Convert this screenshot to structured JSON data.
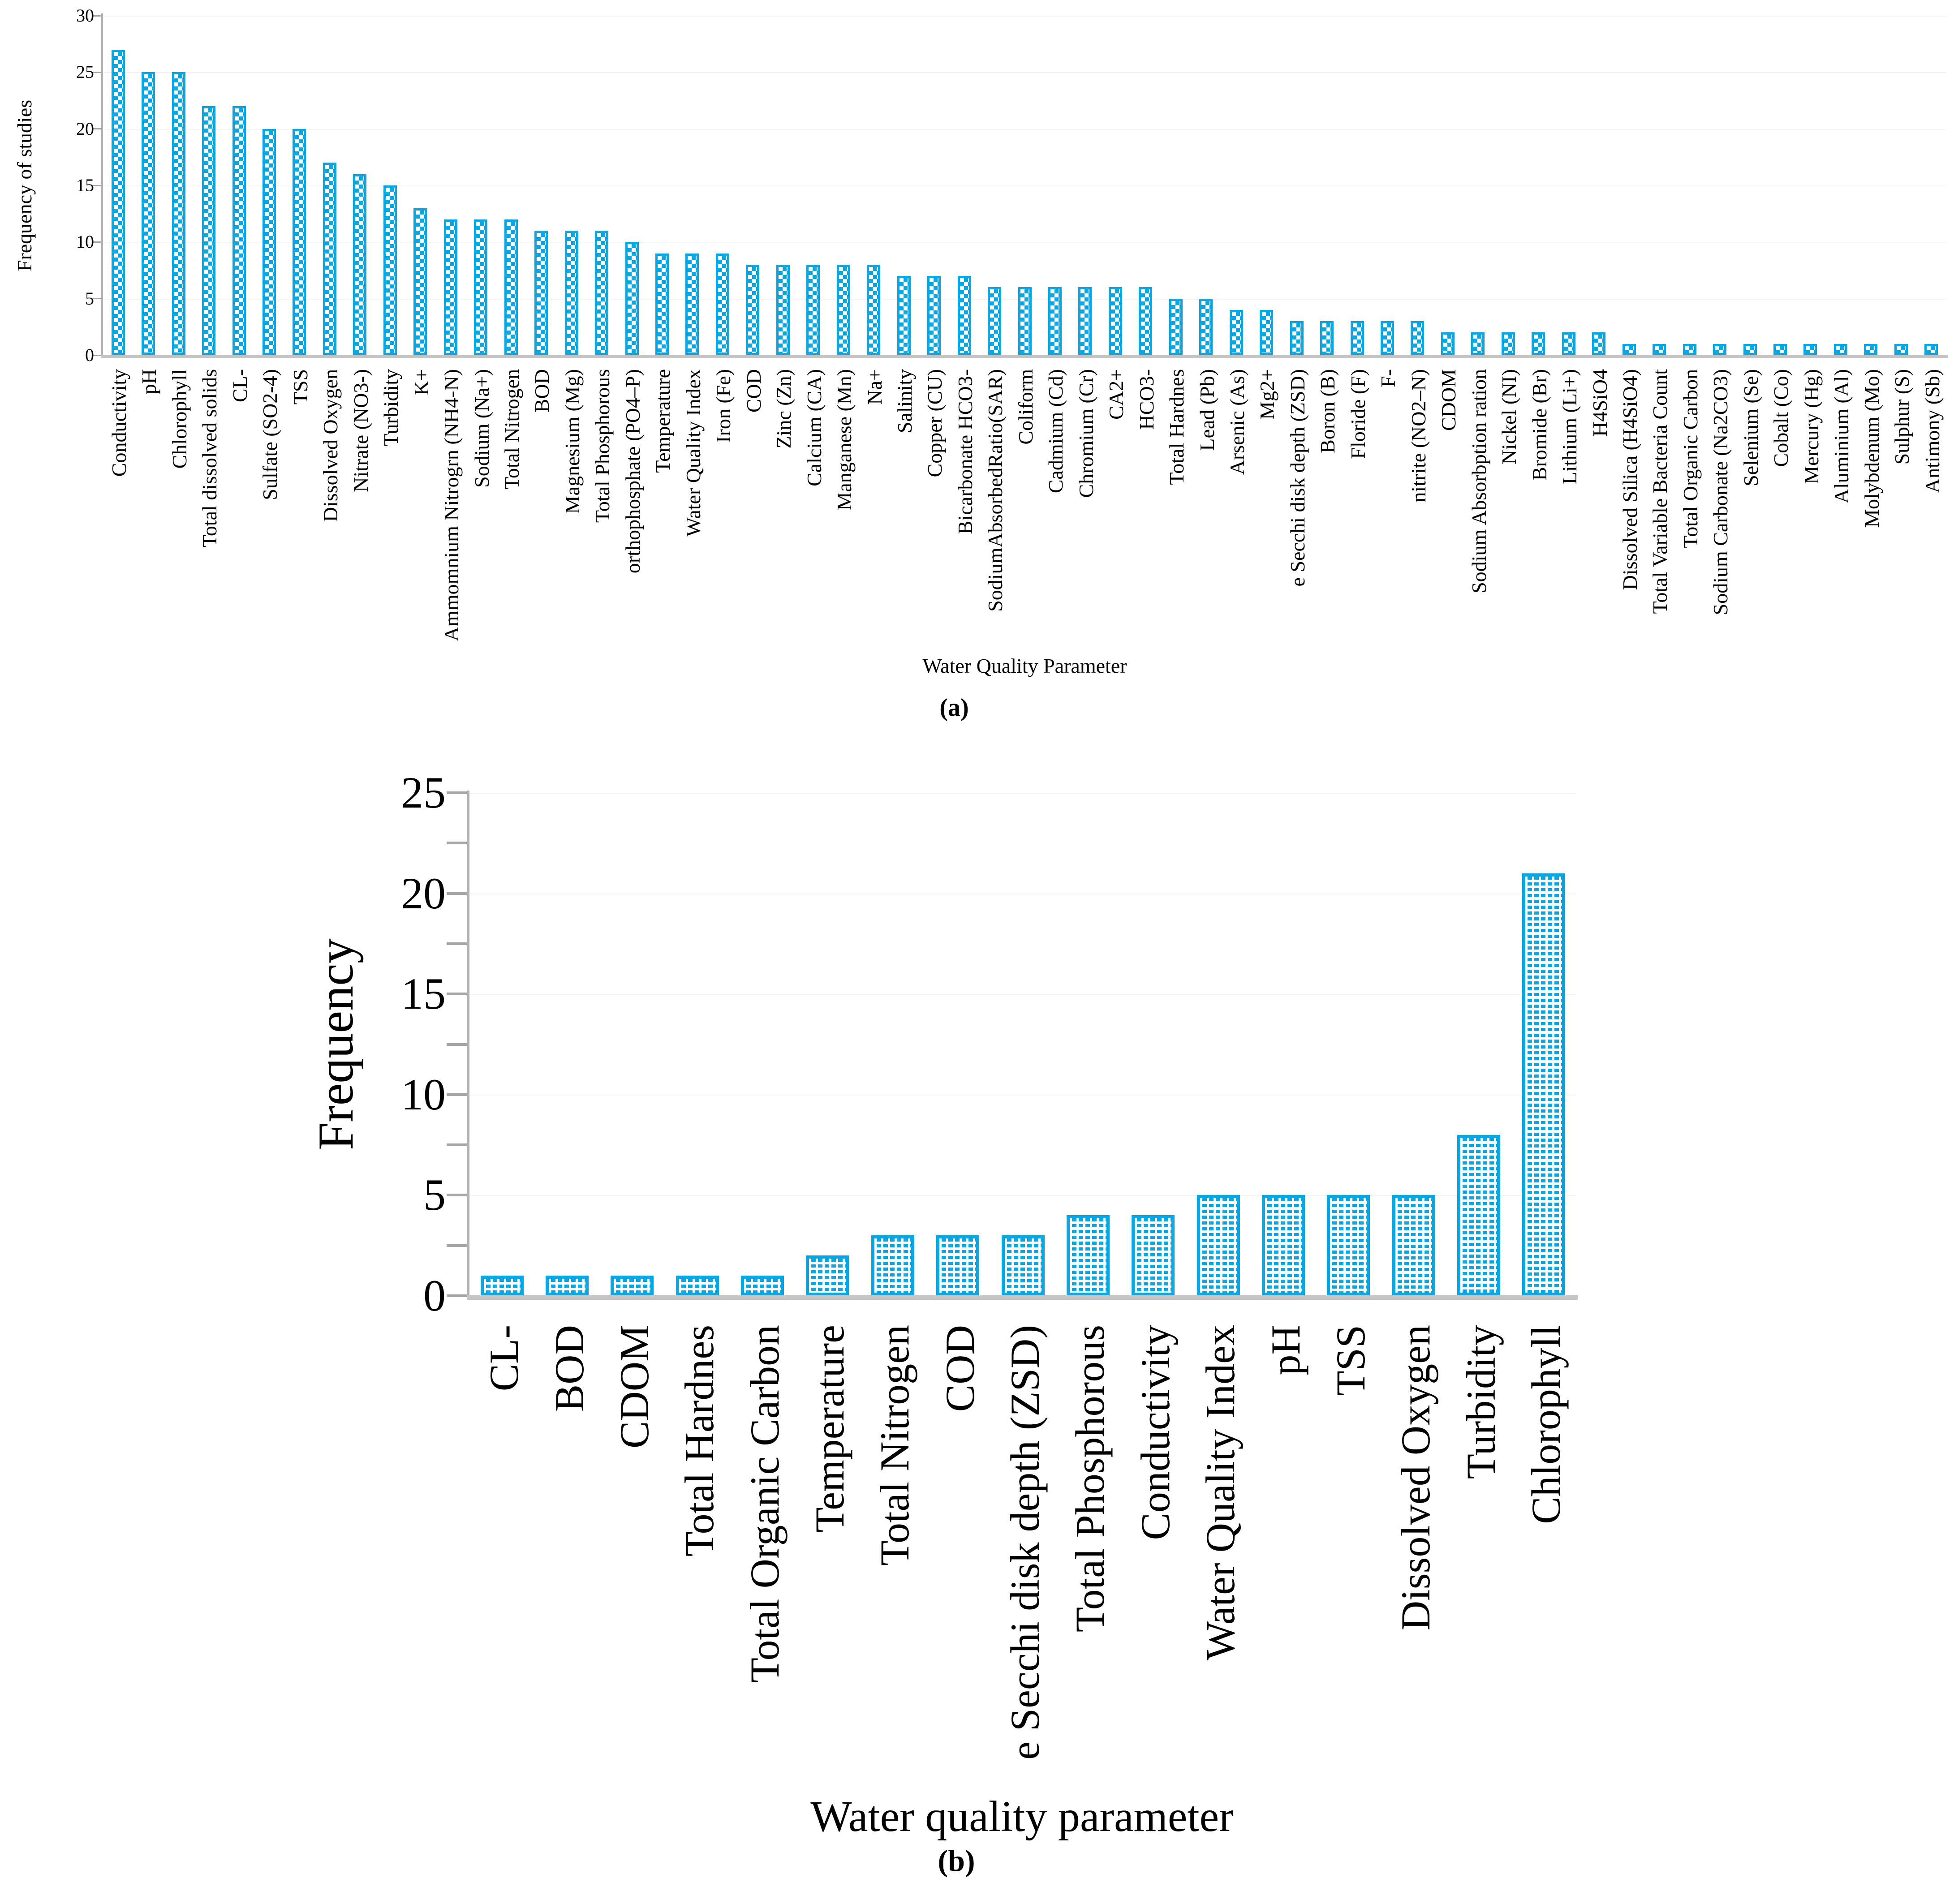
{
  "colors": {
    "bar_fill_accent": "#06A7E2",
    "axis_line": "#c6c6c6",
    "gridline": "#f5f2f0"
  },
  "chart_data": [
    {
      "type": "bar",
      "panel": "a",
      "caption": "(a)",
      "ylabel": "Frequency of studies",
      "xlabel": "Water Quality Parameter",
      "ylim": [
        0,
        30
      ],
      "yticks": [
        0,
        5,
        10,
        15,
        20,
        25,
        30
      ],
      "grid": "faint horizontal at 5-unit steps",
      "legend": "none",
      "bar_pattern": "checkerboard",
      "categories": [
        "Conductivity",
        "pH",
        "Chlorophyll",
        "Total dissolved solids",
        "CL-",
        "Sulfate (SO2-4)",
        "TSS",
        "Dissolved Oxygen",
        "Nitrate (NO3-)",
        "Turbidity",
        "K+",
        "Ammomnium Nitrogrn (NH4-N)",
        "Sodium (Na+)",
        "Total Nitrogen",
        "BOD",
        "Magnesium (Mg)",
        "Total Phosphorous",
        "orthophosphate (PO4–P)",
        "Temperature",
        "Water Quality Index",
        "Iron (Fe)",
        "COD",
        "Zinc (Zn)",
        "Calcium (CA)",
        "Manganese (Mn)",
        "Na+",
        "Salinity",
        "Copper (CU)",
        "Bicarbonate HCO3-",
        "SodiumAbsorbedRatio(SAR)",
        "Coliform",
        "Cadmium (Cd)",
        "Chromium (Cr)",
        "CA2+",
        "HCO3-",
        "Total Hardnes",
        "Lead (Pb)",
        "Arsenic (As)",
        "Mg2+",
        "e Secchi disk depth (ZSD)",
        "Boron (B)",
        "Floride (F)",
        "F-",
        "nitrite (NO2–N)",
        "CDOM",
        "Sodium Absorbption ration",
        "Nickel (NI)",
        "Bromide (Br)",
        "Lithium (Li+)",
        "H4SiO4",
        "Dissolved Silica (H4SiO4)",
        "Total Variable Bacteria Count",
        "Total Organic Carbon",
        "Sodium Carbonate (Na2CO3)",
        "Selenium (Se)",
        "Cobalt (Co)",
        "Mercury (Hg)",
        "Aluminium (Al)",
        "Molybdenum (Mo)",
        "Sulphur (S)",
        "Antimony (Sb)"
      ],
      "values": [
        27,
        25,
        25,
        22,
        22,
        20,
        20,
        17,
        16,
        15,
        13,
        12,
        12,
        12,
        11,
        11,
        11,
        10,
        9,
        9,
        9,
        8,
        8,
        8,
        8,
        8,
        7,
        7,
        7,
        6,
        6,
        6,
        6,
        6,
        6,
        5,
        5,
        4,
        4,
        3,
        3,
        3,
        3,
        3,
        2,
        2,
        2,
        2,
        2,
        2,
        1,
        1,
        1,
        1,
        1,
        1,
        1,
        1,
        1,
        1,
        1
      ]
    },
    {
      "type": "bar",
      "panel": "b",
      "caption": "(b)",
      "ylabel": "Frequency",
      "xlabel": "Water quality parameter",
      "ylim": [
        0,
        25
      ],
      "yticks": [
        0,
        5,
        10,
        15,
        20,
        25
      ],
      "minor_tick_step": 2.5,
      "grid": "faint horizontal at 5-unit steps",
      "legend": "none",
      "bar_pattern": "dotted",
      "categories": [
        "CL-",
        "BOD",
        "CDOM",
        "Total Hardnes",
        "Total Organic Carbon",
        "Temperature",
        "Total Nitrogen",
        "COD",
        "e Secchi disk depth (ZSD)",
        "Total Phosphorous",
        "Conductivity",
        "Water Quality Index",
        "pH",
        "TSS",
        "Dissolved Oxygen",
        "Turbidity",
        "Chlorophyll"
      ],
      "values": [
        1,
        1,
        1,
        1,
        1,
        2,
        3,
        3,
        3,
        4,
        4,
        5,
        5,
        5,
        5,
        8,
        21
      ]
    }
  ]
}
